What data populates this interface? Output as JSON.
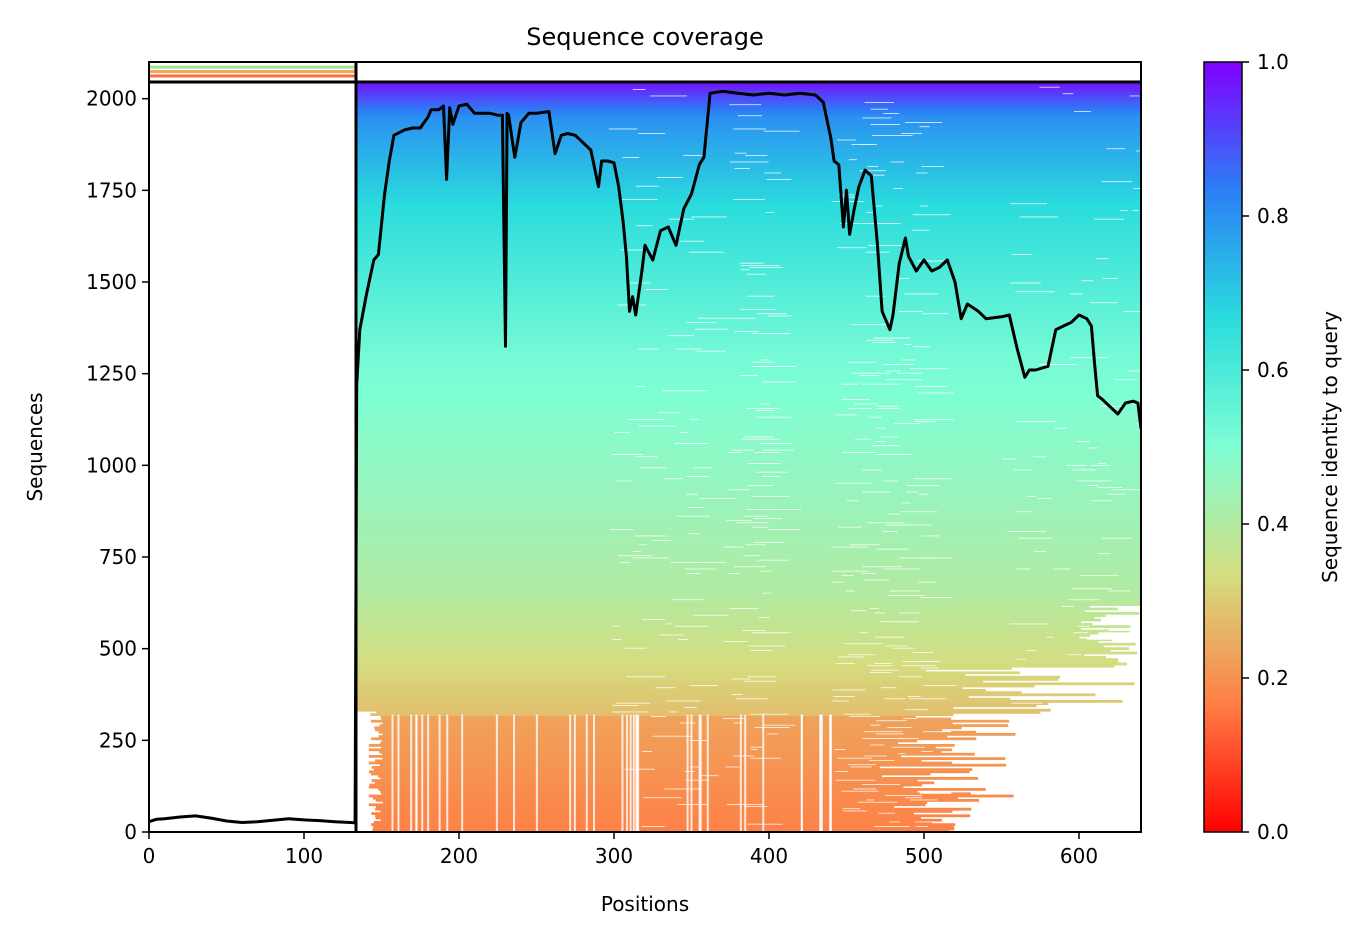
{
  "chart_data": {
    "type": "heatmap",
    "title": "Sequence coverage",
    "xlabel": "Positions",
    "ylabel": "Sequences",
    "colorbar_label": "Sequence identity to query",
    "xlim": [
      0,
      640
    ],
    "ylim": [
      0,
      2100
    ],
    "x_ticks": [
      "0",
      "100",
      "200",
      "300",
      "400",
      "500",
      "600"
    ],
    "y_ticks": [
      "0",
      "250",
      "500",
      "750",
      "1000",
      "1250",
      "1500",
      "1750",
      "2000"
    ],
    "colorbar_ticks": [
      "0.0",
      "0.2",
      "0.4",
      "0.6",
      "0.8",
      "1.0"
    ],
    "colormap": "rainbow_r",
    "colormap_stops": [
      "#ff0000",
      "#ff7f45",
      "#d4dd80",
      "#7ffed4",
      "#2adcdd",
      "#2b7ff6",
      "#8000ff"
    ],
    "total_sequences": 2048,
    "query_length": 640,
    "chain_boundary_position": 133,
    "coverage_line_color": "#000000",
    "coverage_series": {
      "name": "coverage",
      "x": [
        0,
        5,
        10,
        20,
        30,
        40,
        50,
        60,
        70,
        80,
        90,
        100,
        110,
        120,
        133,
        134,
        136,
        140,
        145,
        148,
        152,
        155,
        158,
        165,
        170,
        175,
        180,
        182,
        187,
        190,
        192,
        194,
        196,
        200,
        205,
        210,
        220,
        225,
        228,
        230,
        231,
        232,
        236,
        240,
        245,
        250,
        258,
        262,
        266,
        270,
        275,
        285,
        290,
        292,
        296,
        300,
        303,
        306,
        308,
        310,
        312,
        314,
        318,
        320,
        325,
        330,
        335,
        340,
        345,
        350,
        355,
        358,
        362,
        370,
        380,
        390,
        400,
        410,
        420,
        430,
        435,
        440,
        442,
        445,
        448,
        450,
        452,
        455,
        458,
        462,
        466,
        470,
        473,
        476,
        478,
        480,
        484,
        488,
        490,
        495,
        500,
        505,
        510,
        515,
        520,
        524,
        528,
        535,
        540,
        550,
        555,
        560,
        565,
        568,
        572,
        580,
        585,
        590,
        595,
        600,
        605,
        608,
        610,
        612,
        615,
        620,
        625,
        630,
        635,
        638,
        640
      ],
      "y": [
        28,
        35,
        36,
        41,
        44,
        38,
        30,
        26,
        28,
        32,
        36,
        33,
        31,
        28,
        25,
        1220,
        1370,
        1460,
        1560,
        1575,
        1740,
        1830,
        1900,
        1915,
        1920,
        1920,
        1950,
        1970,
        1970,
        1980,
        1780,
        1975,
        1930,
        1980,
        1985,
        1960,
        1960,
        1955,
        1955,
        1325,
        1960,
        1955,
        1840,
        1935,
        1960,
        1960,
        1965,
        1850,
        1900,
        1905,
        1900,
        1860,
        1760,
        1830,
        1830,
        1825,
        1760,
        1660,
        1570,
        1420,
        1460,
        1410,
        1530,
        1600,
        1560,
        1640,
        1650,
        1600,
        1700,
        1740,
        1820,
        1840,
        2015,
        2020,
        2015,
        2010,
        2015,
        2010,
        2015,
        2010,
        1990,
        1890,
        1830,
        1820,
        1650,
        1750,
        1630,
        1700,
        1760,
        1805,
        1790,
        1600,
        1420,
        1390,
        1370,
        1410,
        1550,
        1620,
        1570,
        1530,
        1560,
        1530,
        1540,
        1560,
        1500,
        1400,
        1440,
        1420,
        1400,
        1405,
        1410,
        1320,
        1240,
        1260,
        1260,
        1270,
        1370,
        1380,
        1390,
        1410,
        1400,
        1380,
        1280,
        1190,
        1180,
        1160,
        1140,
        1170,
        1175,
        1170,
        1100
      ]
    }
  }
}
